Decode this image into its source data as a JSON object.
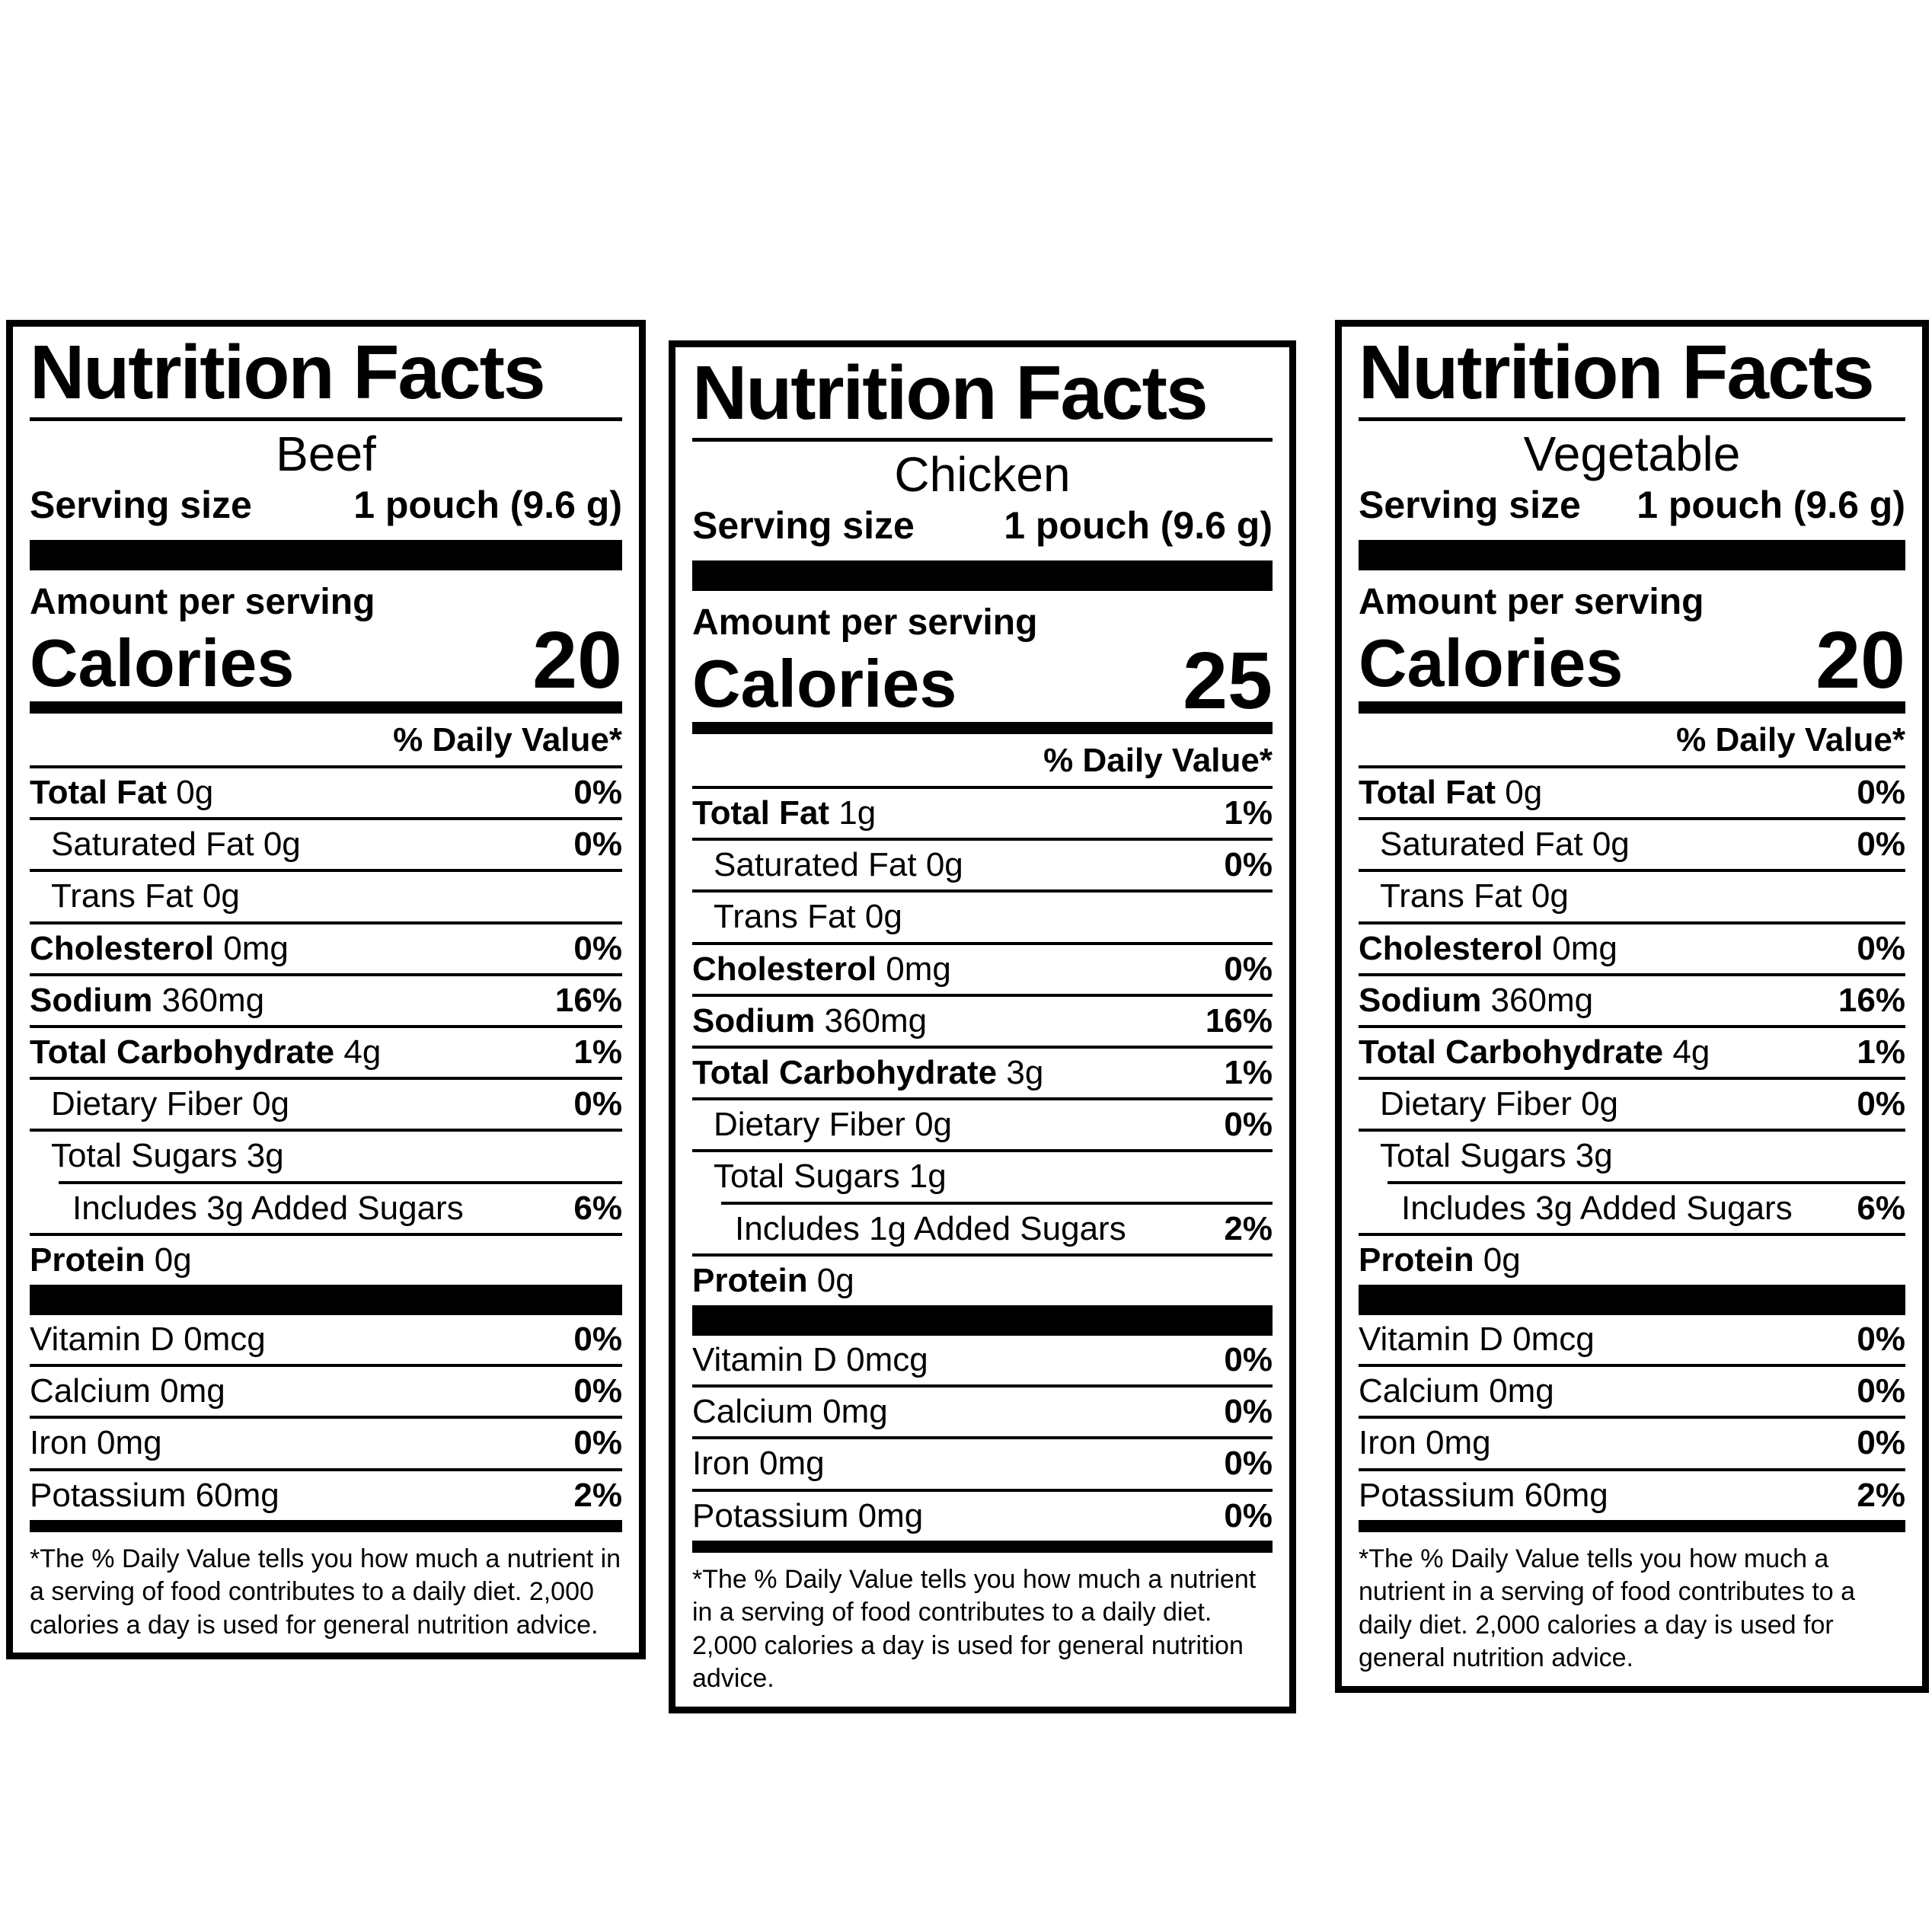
{
  "common": {
    "title": "Nutrition Facts",
    "serving_size_label": "Serving size",
    "serving_size_value": "1 pouch (9.6 g)",
    "amount_per_serving": "Amount per serving",
    "calories_label": "Calories",
    "daily_value_header": "% Daily Value*",
    "footnote": "*The % Daily Value tells you how much a nutrient in a serving of food contributes to a daily diet. 2,000 calories a day is used for general nutrition advice."
  },
  "panels": [
    {
      "flavor": "Beef",
      "calories": "20",
      "rows": [
        {
          "bold": "Total Fat",
          "rest": "0g",
          "indent": 0,
          "dv": "0%"
        },
        {
          "bold": "",
          "rest": "Saturated Fat 0g",
          "indent": 1,
          "dv": "0%"
        },
        {
          "bold": "",
          "rest": "Trans Fat 0g",
          "indent": 1,
          "dv": ""
        },
        {
          "bold": "Cholesterol",
          "rest": "0mg",
          "indent": 0,
          "dv": "0%"
        },
        {
          "bold": "Sodium",
          "rest": "360mg",
          "indent": 0,
          "dv": "16%"
        },
        {
          "bold": "Total Carbohydrate",
          "rest": "4g",
          "indent": 0,
          "dv": "1%"
        },
        {
          "bold": "",
          "rest": "Dietary Fiber 0g",
          "indent": 1,
          "dv": "0%"
        },
        {
          "bold": "",
          "rest": "Total Sugars 3g",
          "indent": 1,
          "dv": ""
        },
        {
          "bold": "",
          "rest": "Includes 3g Added Sugars",
          "indent": 2,
          "dv": "6%",
          "sep_indent": true
        },
        {
          "bold": "Protein",
          "rest": "0g",
          "indent": 0,
          "dv": ""
        }
      ],
      "micros": [
        {
          "bold": "",
          "rest": "Vitamin D 0mcg",
          "indent": 0,
          "dv": "0%"
        },
        {
          "bold": "",
          "rest": "Calcium 0mg",
          "indent": 0,
          "dv": "0%"
        },
        {
          "bold": "",
          "rest": "Iron 0mg",
          "indent": 0,
          "dv": "0%"
        },
        {
          "bold": "",
          "rest": "Potassium 60mg",
          "indent": 0,
          "dv": "2%"
        }
      ]
    },
    {
      "flavor": "Chicken",
      "calories": "25",
      "rows": [
        {
          "bold": "Total Fat",
          "rest": "1g",
          "indent": 0,
          "dv": "1%"
        },
        {
          "bold": "",
          "rest": "Saturated Fat 0g",
          "indent": 1,
          "dv": "0%"
        },
        {
          "bold": "",
          "rest": "Trans Fat 0g",
          "indent": 1,
          "dv": ""
        },
        {
          "bold": "Cholesterol",
          "rest": "0mg",
          "indent": 0,
          "dv": "0%"
        },
        {
          "bold": "Sodium",
          "rest": "360mg",
          "indent": 0,
          "dv": "16%"
        },
        {
          "bold": "Total Carbohydrate",
          "rest": "3g",
          "indent": 0,
          "dv": "1%"
        },
        {
          "bold": "",
          "rest": "Dietary Fiber 0g",
          "indent": 1,
          "dv": "0%"
        },
        {
          "bold": "",
          "rest": "Total Sugars 1g",
          "indent": 1,
          "dv": ""
        },
        {
          "bold": "",
          "rest": "Includes 1g Added Sugars",
          "indent": 2,
          "dv": "2%",
          "sep_indent": true
        },
        {
          "bold": "Protein",
          "rest": "0g",
          "indent": 0,
          "dv": ""
        }
      ],
      "micros": [
        {
          "bold": "",
          "rest": "Vitamin D 0mcg",
          "indent": 0,
          "dv": "0%"
        },
        {
          "bold": "",
          "rest": "Calcium 0mg",
          "indent": 0,
          "dv": "0%"
        },
        {
          "bold": "",
          "rest": "Iron 0mg",
          "indent": 0,
          "dv": "0%"
        },
        {
          "bold": "",
          "rest": "Potassium 0mg",
          "indent": 0,
          "dv": "0%"
        }
      ]
    },
    {
      "flavor": "Vegetable",
      "calories": "20",
      "rows": [
        {
          "bold": "Total Fat",
          "rest": "0g",
          "indent": 0,
          "dv": "0%"
        },
        {
          "bold": "",
          "rest": "Saturated Fat 0g",
          "indent": 1,
          "dv": "0%"
        },
        {
          "bold": "",
          "rest": "Trans Fat 0g",
          "indent": 1,
          "dv": ""
        },
        {
          "bold": "Cholesterol",
          "rest": "0mg",
          "indent": 0,
          "dv": "0%"
        },
        {
          "bold": "Sodium",
          "rest": "360mg",
          "indent": 0,
          "dv": "16%"
        },
        {
          "bold": "Total Carbohydrate",
          "rest": "4g",
          "indent": 0,
          "dv": "1%"
        },
        {
          "bold": "",
          "rest": "Dietary Fiber 0g",
          "indent": 1,
          "dv": "0%"
        },
        {
          "bold": "",
          "rest": "Total Sugars 3g",
          "indent": 1,
          "dv": ""
        },
        {
          "bold": "",
          "rest": "Includes 3g Added Sugars",
          "indent": 2,
          "dv": "6%",
          "sep_indent": true
        },
        {
          "bold": "Protein",
          "rest": "0g",
          "indent": 0,
          "dv": ""
        }
      ],
      "micros": [
        {
          "bold": "",
          "rest": "Vitamin D 0mcg",
          "indent": 0,
          "dv": "0%"
        },
        {
          "bold": "",
          "rest": "Calcium 0mg",
          "indent": 0,
          "dv": "0%"
        },
        {
          "bold": "",
          "rest": "Iron 0mg",
          "indent": 0,
          "dv": "0%"
        },
        {
          "bold": "",
          "rest": "Potassium 60mg",
          "indent": 0,
          "dv": "2%"
        }
      ]
    }
  ]
}
